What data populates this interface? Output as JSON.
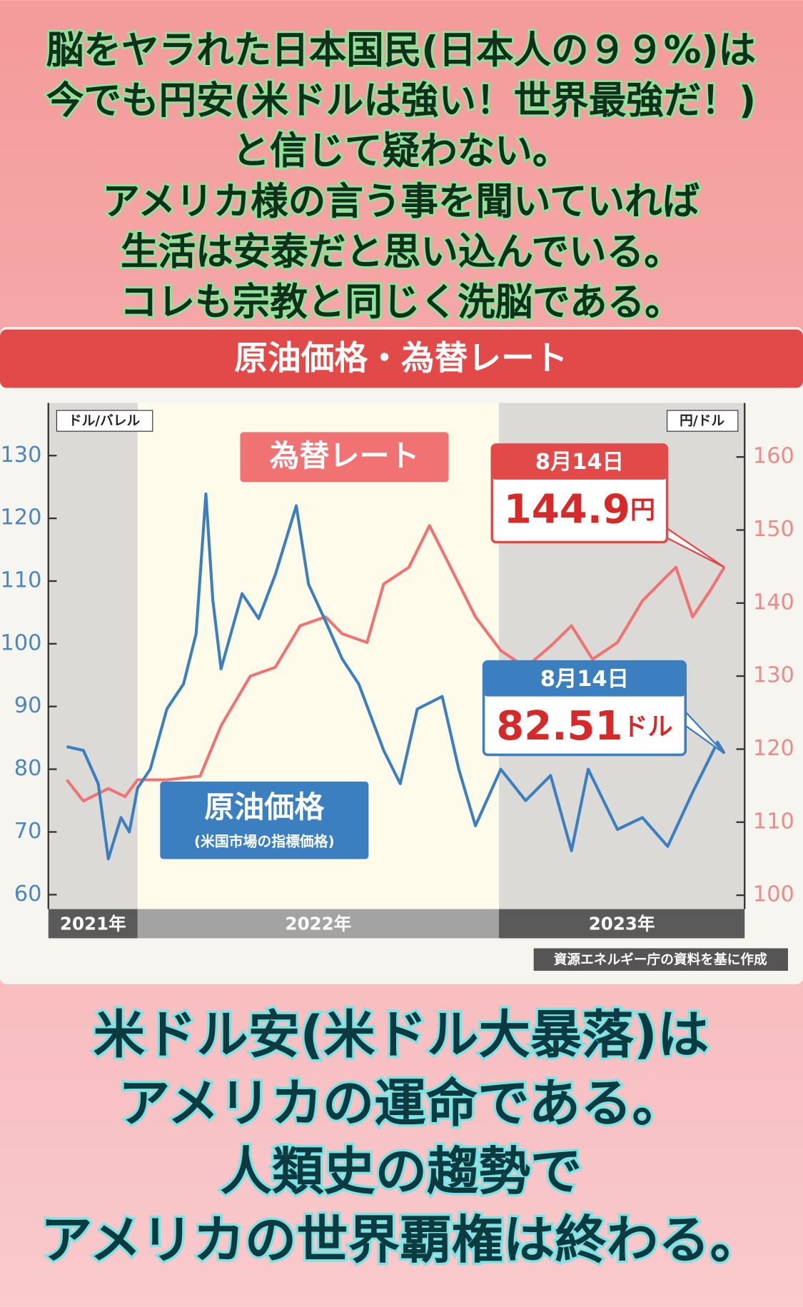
{
  "header_lines": [
    "脳をヤラれた日本国民(日本人の９９%)は",
    "今でも円安(米ドルは強い！世界最強だ！)",
    "と信じて疑わない。",
    "アメリカ様の言う事を聞いていれば",
    "生活は安泰だと思い込んでいる。",
    "コレも宗教と同じく洗脳である。"
  ],
  "footer_lines": [
    "米ドル安(米ドル大暴落)は",
    "アメリカの運命である。",
    "人類史の趨勢で",
    "アメリカの世界覇権は終わる。"
  ],
  "chart_data": {
    "type": "line",
    "title": "原油価格・為替レート",
    "y_label": "ドル/バレル",
    "y2_label": "円/ドル",
    "source": "資源エネルギー庁の資料を基に作成",
    "xlim": [
      2021.753,
      2023.68
    ],
    "xbands": [
      {
        "label": "2021年",
        "from": 2021.753,
        "to": 2022,
        "shaded": true
      },
      {
        "label": "2022年",
        "from": 2022,
        "to": 2023,
        "shaded": false
      },
      {
        "label": "2023年",
        "from": 2023,
        "to": 2023.68,
        "shaded": true
      }
    ],
    "ylim": [
      57.7,
      138.4
    ],
    "yticks": [
      60,
      70,
      80,
      90,
      100,
      110,
      120,
      130
    ],
    "y2lim": [
      98.1,
      167.4
    ],
    "y2ticks": [
      100,
      110,
      120,
      130,
      140,
      150,
      160
    ],
    "series": [
      {
        "name": "為替レート",
        "color": "#f07272",
        "axis": "y2",
        "x": [
          2021.804,
          2021.85,
          2021.919,
          2021.965,
          2022.0,
          2022.081,
          2022.173,
          2022.231,
          2022.312,
          2022.381,
          2022.45,
          2022.52,
          2022.566,
          2022.635,
          2022.681,
          2022.751,
          2022.808,
          2022.866,
          2022.935,
          2023.005,
          2023.074,
          2023.143,
          2023.201,
          2023.259,
          2023.328,
          2023.397,
          2023.467,
          2023.49,
          2023.536,
          2023.582,
          2023.624
        ],
        "values": [
          115.8,
          112.9,
          114.6,
          113.5,
          115.8,
          115.8,
          116.3,
          123.2,
          130,
          131.2,
          136.9,
          138.1,
          135.8,
          134.6,
          142.6,
          144.9,
          150.6,
          144.9,
          138.1,
          133.5,
          131.2,
          134.1,
          136.9,
          132.3,
          134.6,
          140.3,
          143.8,
          144.9,
          138.1,
          141.5,
          144.9
        ],
        "callout": {
          "date": "8月14日",
          "value": 144.9,
          "unit": "円"
        }
      },
      {
        "name": "原油価格",
        "note": "(米国市場の指標価格)",
        "color": "#3b7fc0",
        "axis": "y",
        "x": [
          2021.804,
          2021.85,
          2021.891,
          2021.919,
          2021.954,
          2021.977,
          2022.0,
          2022.035,
          2022.081,
          2022.127,
          2022.162,
          2022.189,
          2022.208,
          2022.231,
          2022.289,
          2022.335,
          2022.381,
          2022.439,
          2022.473,
          2022.52,
          2022.566,
          2022.612,
          2022.681,
          2022.727,
          2022.774,
          2022.843,
          2022.889,
          2022.935,
          2023.005,
          2023.074,
          2023.143,
          2023.201,
          2023.247,
          2023.328,
          2023.397,
          2023.467,
          2023.536,
          2023.605,
          2023.624
        ],
        "values": [
          83.6,
          83,
          77.7,
          65.7,
          72.3,
          70,
          77,
          80,
          89.6,
          93.6,
          101.6,
          123.9,
          107,
          96,
          108,
          104,
          111,
          122,
          109.5,
          103.6,
          97.6,
          93.6,
          83,
          77.7,
          89.6,
          91.6,
          80,
          71,
          80,
          75,
          79,
          67,
          80,
          70.4,
          72.3,
          67.7,
          76.3,
          84.3,
          82.51
        ],
        "callout": {
          "date": "8月14日",
          "value": 82.51,
          "unit": "ドル"
        }
      }
    ]
  }
}
